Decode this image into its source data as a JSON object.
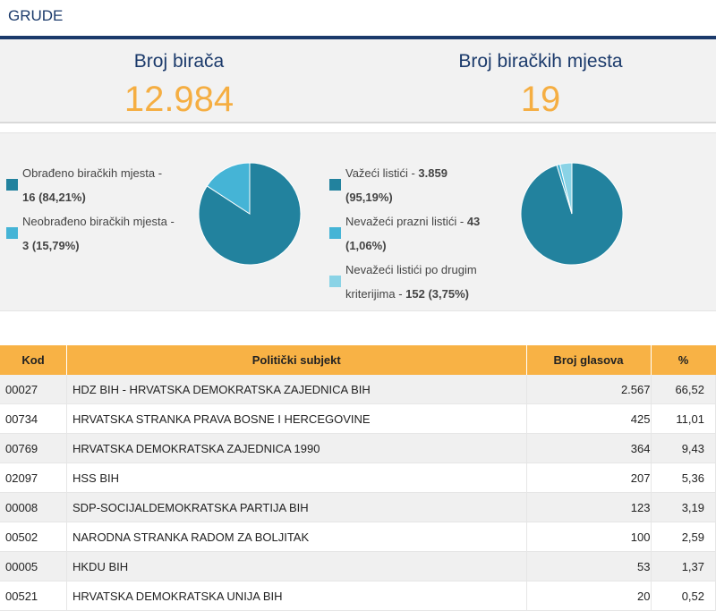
{
  "header": {
    "title": "GRUDE"
  },
  "summary": {
    "voters_label": "Broj birača",
    "voters_value": "12.984",
    "stations_label": "Broj biračkih mjesta",
    "stations_value": "19"
  },
  "colors": {
    "accent": "#f5ae42",
    "navy": "#1b3a6b",
    "dark_teal": "#22829e",
    "mid_teal": "#45b4d6",
    "light_teal": "#8ad3e6"
  },
  "chart_data": [
    {
      "type": "pie",
      "title": "",
      "slices": [
        {
          "label": "Obrađeno biračkih mjesta",
          "value": 84.21,
          "text_a": "Obrađeno biračkih mjesta -",
          "text_b": "16 (84,21%)",
          "color": "#22829e"
        },
        {
          "label": "Neobrađeno biračkih mjesta",
          "value": 15.79,
          "text_a": "Neobrađeno biračkih mjesta -",
          "text_b": "3 (15,79%)",
          "color": "#45b4d6"
        }
      ]
    },
    {
      "type": "pie",
      "title": "",
      "slices": [
        {
          "label": "Važeći listići",
          "value": 95.19,
          "text_a": "Važeći listići - ",
          "bold_a": "3.859",
          "text_b": "(95,19%)",
          "color": "#22829e"
        },
        {
          "label": "Nevažeći prazni listići",
          "value": 1.06,
          "text_a": "Nevažeći prazni listići - ",
          "bold_a": "43",
          "text_b": "(1,06%)",
          "color": "#45b4d6"
        },
        {
          "label": "Nevažeći listići po drugim kriterijima",
          "value": 3.75,
          "text_a": "Nevažeći listići po drugim",
          "text_b_plain": "kriterijima - ",
          "text_b": "152 (3,75%)",
          "color": "#8ad3e6"
        }
      ]
    }
  ],
  "table": {
    "headers": {
      "kod": "Kod",
      "subjekt": "Politički subjekt",
      "glasova": "Broj glasova",
      "pct": "%"
    },
    "rows": [
      {
        "kod": "00027",
        "subjekt": "HDZ BIH - HRVATSKA DEMOKRATSKA ZAJEDNICA BIH",
        "glasova": "2.567",
        "pct": "66,52"
      },
      {
        "kod": "00734",
        "subjekt": "HRVATSKA STRANKA PRAVA BOSNE I HERCEGOVINE",
        "glasova": "425",
        "pct": "11,01"
      },
      {
        "kod": "00769",
        "subjekt": "HRVATSKA DEMOKRATSKA ZAJEDNICA 1990",
        "glasova": "364",
        "pct": "9,43"
      },
      {
        "kod": "02097",
        "subjekt": "HSS BIH",
        "glasova": "207",
        "pct": "5,36"
      },
      {
        "kod": "00008",
        "subjekt": "SDP-SOCIJALDEMOKRATSKA PARTIJA BIH",
        "glasova": "123",
        "pct": "3,19"
      },
      {
        "kod": "00502",
        "subjekt": "NARODNA STRANKA RADOM ZA BOLJITAK",
        "glasova": "100",
        "pct": "2,59"
      },
      {
        "kod": "00005",
        "subjekt": "HKDU BIH",
        "glasova": "53",
        "pct": "1,37"
      },
      {
        "kod": "00521",
        "subjekt": "HRVATSKA DEMOKRATSKA UNIJA BIH",
        "glasova": "20",
        "pct": "0,52"
      }
    ]
  }
}
